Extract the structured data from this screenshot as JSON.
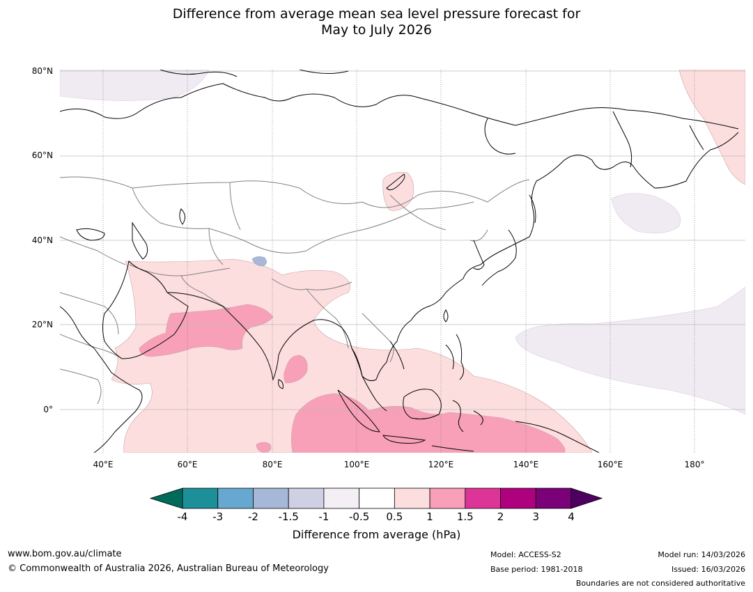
{
  "title": {
    "line1": "Difference from average mean sea level pressure forecast for",
    "line2": "May to July 2026"
  },
  "map": {
    "lat_labels": [
      "80°N",
      "60°N",
      "40°N",
      "20°N",
      "0°"
    ],
    "lon_labels": [
      "40°E",
      "60°E",
      "80°E",
      "100°E",
      "120°E",
      "140°E",
      "160°E",
      "180°"
    ],
    "region": "Asia",
    "colors": {
      "land_outline": "#000000",
      "border": "#808080",
      "grid": "#bbbbbb",
      "pale_pink": "#fddede",
      "pink": "#f8a0b8",
      "pale_purple": "#f0eaf2",
      "pale_blue": "#a8b8d6"
    }
  },
  "colorbar": {
    "ticks": [
      "-4",
      "-3",
      "-2",
      "-1.5",
      "-1",
      "-0.5",
      "0.5",
      "1",
      "1.5",
      "2",
      "3",
      "4"
    ],
    "bins": [
      {
        "color": "#1c8f98"
      },
      {
        "color": "#66a8cf"
      },
      {
        "color": "#a6b8d8"
      },
      {
        "color": "#cfd0e4"
      },
      {
        "color": "#f3eff5"
      },
      {
        "color": "#ffffff"
      },
      {
        "color": "#fddede"
      },
      {
        "color": "#f99fba"
      },
      {
        "color": "#dd3497"
      },
      {
        "color": "#ad017e"
      },
      {
        "color": "#7a0177"
      }
    ],
    "under_color": "#006b5a",
    "over_color": "#4d0060",
    "label": "Difference from average (hPa)"
  },
  "footer": {
    "website": "www.bom.gov.au/climate",
    "copyright": "© Commonwealth of Australia 2026, Australian Bureau of Meteorology",
    "model": "Model: ACCESS-S2",
    "base_period": "Base period: 1981-2018",
    "model_run": "Model run: 14/03/2026",
    "issued": "Issued: 16/03/2026",
    "disclaimer": "Boundaries are not considered authoritative"
  }
}
